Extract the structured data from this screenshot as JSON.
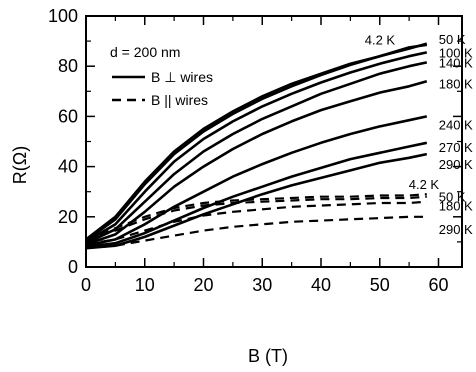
{
  "chart_data": {
    "type": "line",
    "title": "",
    "xlabel": "B (T)",
    "ylabel": "R(Ω)",
    "xlim": [
      0,
      64
    ],
    "ylim": [
      0,
      100
    ],
    "xticks": [
      0,
      10,
      20,
      30,
      40,
      50,
      60
    ],
    "yticks": [
      0,
      20,
      40,
      60,
      80,
      100
    ],
    "grid": false,
    "legend": {
      "placement": "top-left",
      "header": "d = 200 nm",
      "entries": [
        {
          "label": "B ⊥ wires",
          "style": "solid"
        },
        {
          "label": "B || wires",
          "style": "dashed"
        }
      ]
    },
    "x": [
      0,
      5,
      10,
      15,
      20,
      25,
      30,
      35,
      40,
      45,
      50,
      55,
      58
    ],
    "series": [
      {
        "name": "4.2 K",
        "style": "solid",
        "values": [
          11,
          20,
          34,
          46,
          55,
          62,
          68,
          73,
          77,
          81,
          84,
          87,
          89
        ]
      },
      {
        "name": "50 K",
        "style": "solid",
        "values": [
          10.5,
          19,
          33,
          45,
          54,
          61,
          67,
          72,
          76.5,
          80.5,
          84,
          87.5,
          88.5
        ]
      },
      {
        "name": "100 K",
        "style": "solid",
        "values": [
          10,
          17,
          30,
          42,
          51,
          58,
          64,
          69,
          73.5,
          77.5,
          81,
          84,
          85.5
        ]
      },
      {
        "name": "140 K",
        "style": "solid",
        "values": [
          9.5,
          15,
          26,
          37,
          46,
          53,
          59,
          64,
          69,
          73,
          77,
          80,
          81.5
        ]
      },
      {
        "name": "180 K",
        "style": "solid",
        "values": [
          9,
          13,
          22,
          32,
          40,
          47,
          53,
          58,
          62.5,
          66,
          69.5,
          72,
          74
        ]
      },
      {
        "name": "240 K",
        "style": "solid",
        "values": [
          8.5,
          11,
          17,
          24,
          30,
          36,
          41,
          45.5,
          49.5,
          53,
          56,
          58.5,
          60
        ]
      },
      {
        "name": "270 K",
        "style": "solid",
        "values": [
          8,
          9.5,
          13.5,
          18.5,
          23.5,
          28,
          32,
          36,
          39.5,
          43,
          45.5,
          48,
          49.5
        ]
      },
      {
        "name": "290 K",
        "style": "solid",
        "values": [
          7.5,
          8.5,
          12,
          16.5,
          21,
          25,
          29,
          32.5,
          35.5,
          38.5,
          41.5,
          43.5,
          45
        ]
      },
      {
        "name": "4.2 K",
        "style": "dashed",
        "values": [
          11,
          15.5,
          20,
          23.5,
          25.5,
          26.5,
          27,
          27.5,
          28,
          28,
          28.5,
          28.5,
          29
        ]
      },
      {
        "name": "50 K",
        "style": "dashed",
        "values": [
          10.5,
          14.5,
          19,
          22.5,
          24.5,
          25.5,
          26,
          26.5,
          27,
          27,
          27.5,
          27.5,
          28
        ]
      },
      {
        "name": "180 K",
        "style": "dashed",
        "values": [
          9,
          11,
          14.5,
          18,
          20.5,
          22,
          23,
          24,
          24.5,
          25,
          25.5,
          25.5,
          26
        ]
      },
      {
        "name": "290 K",
        "style": "dashed",
        "values": [
          7.5,
          8.5,
          10.5,
          12.5,
          14.5,
          16,
          17,
          18,
          18.5,
          19,
          19.5,
          20,
          20
        ]
      }
    ]
  }
}
